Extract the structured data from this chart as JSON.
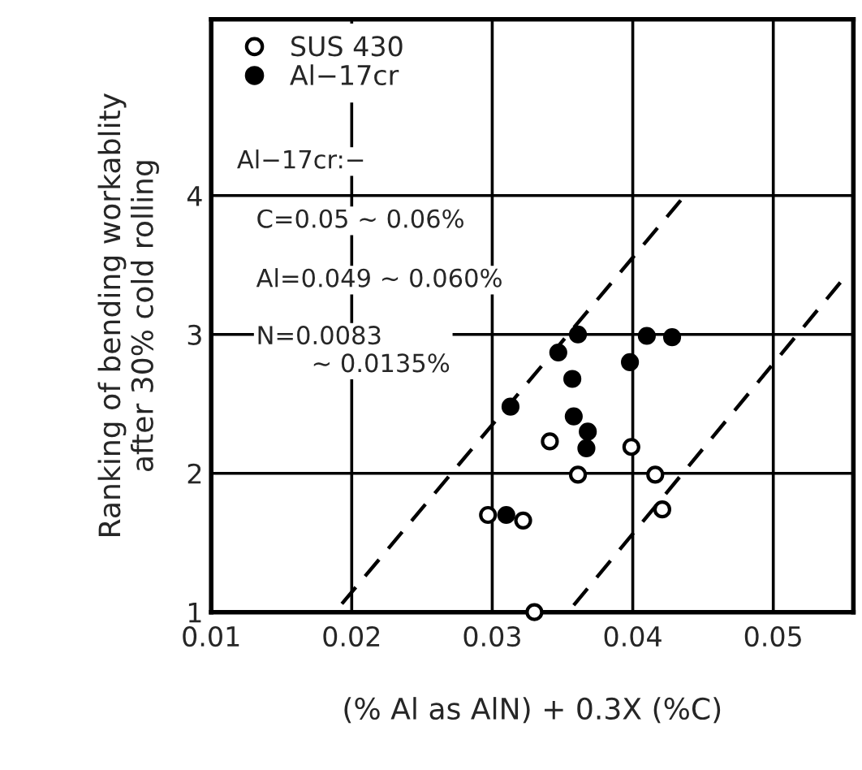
{
  "chart_data": {
    "type": "scatter",
    "xlabel": "(% Al as AlN) + 0.3X (%C)",
    "ylabel": "Ranking of bending workablity\nafter 30% cold rolling",
    "xlim": [
      0.01,
      0.0557
    ],
    "xticks": [
      0.01,
      0.02,
      0.03,
      0.04,
      0.05
    ],
    "ylim": [
      1,
      5.27
    ],
    "yticks": [
      1,
      2,
      3,
      4
    ],
    "grid": true,
    "legend": "top left",
    "marker": "circle",
    "annotations": [
      "Al−17cr:−",
      "C=0.05 ∼ 0.06%",
      "Al=0.049 ∼ 0.060%",
      "N=0.0083\n       ∼ 0.0135%"
    ],
    "series": [
      {
        "name": "SUS 430",
        "color": "#ffffff",
        "x": [
          0.0297,
          0.0322,
          0.033,
          0.0341,
          0.0361,
          0.0399,
          0.0416,
          0.0421
        ],
        "values": [
          1.7,
          1.66,
          1.0,
          2.23,
          1.99,
          2.19,
          1.99,
          1.74
        ]
      },
      {
        "name": "Al−17cr",
        "color": "#000000",
        "x": [
          0.031,
          0.0313,
          0.0347,
          0.0361,
          0.0357,
          0.0358,
          0.0368,
          0.0367,
          0.0398,
          0.041,
          0.0428
        ],
        "values": [
          1.7,
          2.48,
          2.87,
          3.0,
          2.68,
          2.41,
          2.3,
          2.18,
          2.8,
          2.99,
          2.98
        ]
      },
      {
        "type": "line",
        "marker": "none",
        "line_style": "dashed",
        "color": "#000000",
        "x": [
          0.0193,
          0.0437
        ],
        "values": [
          1.06,
          4.0
        ]
      },
      {
        "type": "line",
        "marker": "none",
        "line_style": "dashed",
        "color": "#000000",
        "x": [
          0.0358,
          0.0549
        ],
        "values": [
          1.05,
          3.39
        ]
      }
    ]
  }
}
